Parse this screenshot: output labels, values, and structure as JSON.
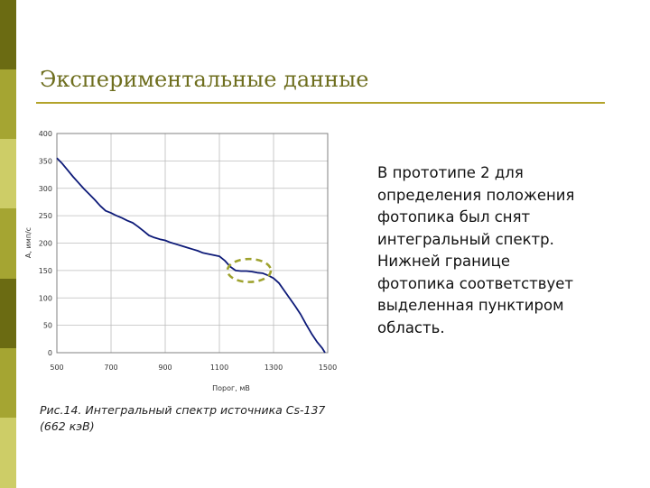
{
  "slide": {
    "title": "Экспериментальные данные",
    "caption_line1": "Рис.14. Интегральный спектр источника Cs-137",
    "caption_line2": "(662 кэВ)",
    "text_lines": [
      "В прототипе 2 для",
      "определения положения",
      "фотопика был снят",
      "интегральный спектр.",
      "Нижней границе",
      "фотопика соответствует",
      "выделенная пунктиром",
      "область."
    ]
  },
  "colors": {
    "title": "#6e6e1e",
    "rule": "#b3a32a",
    "sidebar": [
      "#6b6b12",
      "#a5a532",
      "#cdcd67",
      "#a5a532",
      "#6b6b12",
      "#a5a532",
      "#cdcd67"
    ],
    "series": "#0d1a78",
    "highlight": "#9ea22e",
    "grid": "#bdbdbd"
  },
  "chart_data": {
    "type": "line",
    "xlabel": "Порог, мВ",
    "ylabel": "А, имп/с",
    "xlim": [
      500,
      1500
    ],
    "ylim": [
      0,
      400
    ],
    "xticks": [
      "500",
      "700",
      "900",
      "1100",
      "1300",
      "1500"
    ],
    "yticks": [
      "400",
      "350",
      "300",
      "250",
      "200",
      "150",
      "100",
      "50",
      "0"
    ],
    "grid": true,
    "series": [
      {
        "x": [
          500,
          520,
          540,
          560,
          580,
          600,
          620,
          640,
          660,
          680,
          700,
          720,
          740,
          760,
          780,
          800,
          820,
          840,
          860,
          880,
          900,
          920,
          940,
          960,
          980,
          1000,
          1020,
          1040,
          1060,
          1080,
          1100,
          1120,
          1140,
          1160,
          1180,
          1200,
          1220,
          1240,
          1260,
          1280,
          1300,
          1320,
          1340,
          1360,
          1380,
          1400,
          1420,
          1440,
          1460,
          1480,
          1490
        ],
        "y": [
          355,
          345,
          333,
          321,
          310,
          299,
          289,
          279,
          268,
          259,
          255,
          250,
          246,
          241,
          237,
          230,
          222,
          214,
          210,
          207,
          205,
          201,
          198,
          195,
          192,
          189,
          186,
          182,
          180,
          178,
          176,
          168,
          157,
          150,
          149,
          149,
          148,
          146,
          145,
          141,
          136,
          127,
          113,
          99,
          85,
          70,
          52,
          35,
          20,
          8,
          0
        ]
      }
    ],
    "highlight_region": {
      "x_center": 1210,
      "y_center": 150,
      "x_radius": 80,
      "y_radius": 21
    }
  }
}
